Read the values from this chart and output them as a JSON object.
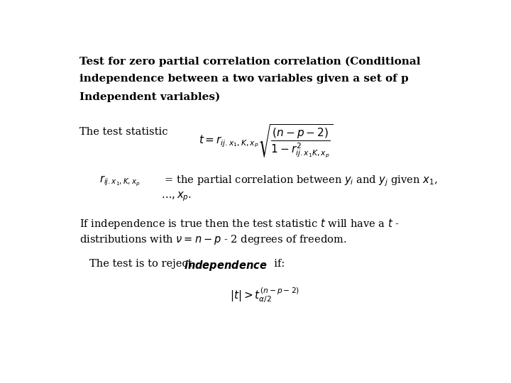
{
  "background_color": "#ffffff",
  "title_line1": "Test for zero partial correlation correlation (Conditional",
  "title_line2": "independence between a two variables given a set of p",
  "title_line3": "Independent variables)",
  "test_statistic_label": "The test statistic",
  "partial_corr_desc1": " = the partial correlation between $y_i$ and $y_j$ given $x_1$,",
  "partial_corr_desc2": "$\\ldots, x_p.$",
  "independence_text1": "If independence is true then the test statistic $t$ will have a $t$ -",
  "independence_text2": "distributions with $\\nu=n-p$ - 2 degrees of freedom.",
  "font_size_title": 11,
  "font_size_body": 10.5,
  "font_size_formula": 11
}
